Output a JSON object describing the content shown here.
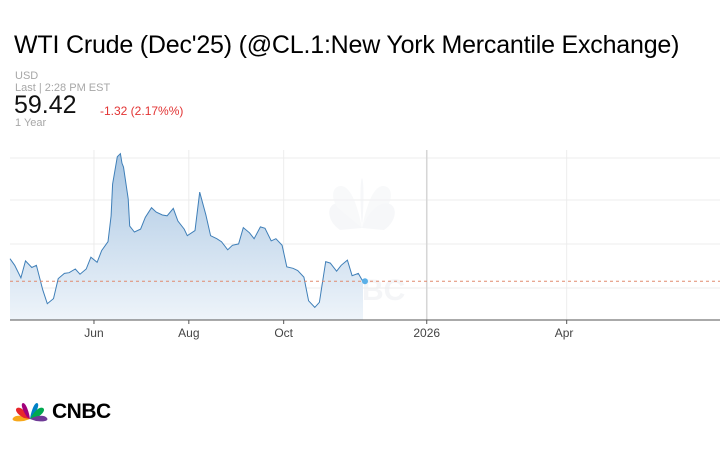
{
  "header": {
    "title": "WTI Crude (Dec'25) (@CL.1:New York Mercantile Exchange)",
    "currency": "USD",
    "last_trade": "Last | 2:28 PM EST",
    "price": "59.42",
    "change": "-1.32 (2.17%%)",
    "period": "1 Year"
  },
  "brand": {
    "name": "CNBC",
    "watermark": "CNBC"
  },
  "colors": {
    "line": "#3f7fb8",
    "fill_top": "#a9c6e2",
    "fill_bottom": "#eef4fa",
    "change_negative": "#e23333",
    "marker": "#5ab0e8",
    "reference_line": "#e08a6e"
  },
  "chart_data": {
    "type": "area",
    "title": "",
    "xlabel": "",
    "ylabel": "",
    "x_ticks": [
      "Jun",
      "Aug",
      "Oct",
      "2026",
      "Apr"
    ],
    "ylim": [
      55.5,
      78.5
    ],
    "reference_value": 60.74,
    "grid": true,
    "series": [
      {
        "name": "",
        "x": [
          "2025-04-08",
          "2025-04-11",
          "2025-04-15",
          "2025-04-18",
          "2025-04-22",
          "2025-04-25",
          "2025-04-29",
          "2025-05-02",
          "2025-05-06",
          "2025-05-09",
          "2025-05-13",
          "2025-05-16",
          "2025-05-20",
          "2025-05-23",
          "2025-05-27",
          "2025-05-30",
          "2025-06-03",
          "2025-06-06",
          "2025-06-10",
          "2025-06-12",
          "2025-06-13",
          "2025-06-16",
          "2025-06-18",
          "2025-06-19",
          "2025-06-20",
          "2025-06-23",
          "2025-06-24",
          "2025-06-27",
          "2025-07-01",
          "2025-07-04",
          "2025-07-08",
          "2025-07-11",
          "2025-07-15",
          "2025-07-18",
          "2025-07-22",
          "2025-07-25",
          "2025-07-29",
          "2025-07-31",
          "2025-08-05",
          "2025-08-08",
          "2025-08-12",
          "2025-08-15",
          "2025-08-19",
          "2025-08-22",
          "2025-08-26",
          "2025-08-29",
          "2025-09-02",
          "2025-09-05",
          "2025-09-09",
          "2025-09-12",
          "2025-09-16",
          "2025-09-19",
          "2025-09-23",
          "2025-09-26",
          "2025-09-30",
          "2025-10-03",
          "2025-10-07",
          "2025-10-10",
          "2025-10-14",
          "2025-10-17",
          "2025-10-21",
          "2025-10-24",
          "2025-10-28",
          "2025-10-31",
          "2025-11-04",
          "2025-11-07",
          "2025-11-11",
          "2025-11-14",
          "2025-11-18",
          "2025-11-21"
        ],
        "values": [
          63.8,
          62.9,
          61.2,
          63.5,
          62.6,
          62.9,
          59.6,
          57.7,
          58.4,
          61.1,
          61.8,
          61.9,
          62.4,
          61.7,
          62.4,
          64.0,
          63.3,
          64.9,
          66.1,
          69.6,
          73.9,
          77.6,
          78.0,
          76.7,
          76.2,
          71.9,
          68.2,
          67.4,
          67.8,
          69.4,
          70.7,
          70.1,
          69.7,
          69.6,
          70.6,
          68.9,
          67.8,
          66.9,
          67.6,
          72.8,
          69.7,
          66.9,
          66.5,
          66.1,
          65.0,
          65.6,
          65.8,
          68.0,
          67.3,
          66.5,
          68.1,
          67.9,
          66.2,
          66.5,
          65.6,
          62.7,
          62.5,
          62.2,
          61.3,
          58.1,
          57.2,
          57.9,
          63.4,
          63.2,
          62.1,
          62.9,
          63.6,
          61.5,
          61.8,
          60.7
        ]
      }
    ]
  }
}
